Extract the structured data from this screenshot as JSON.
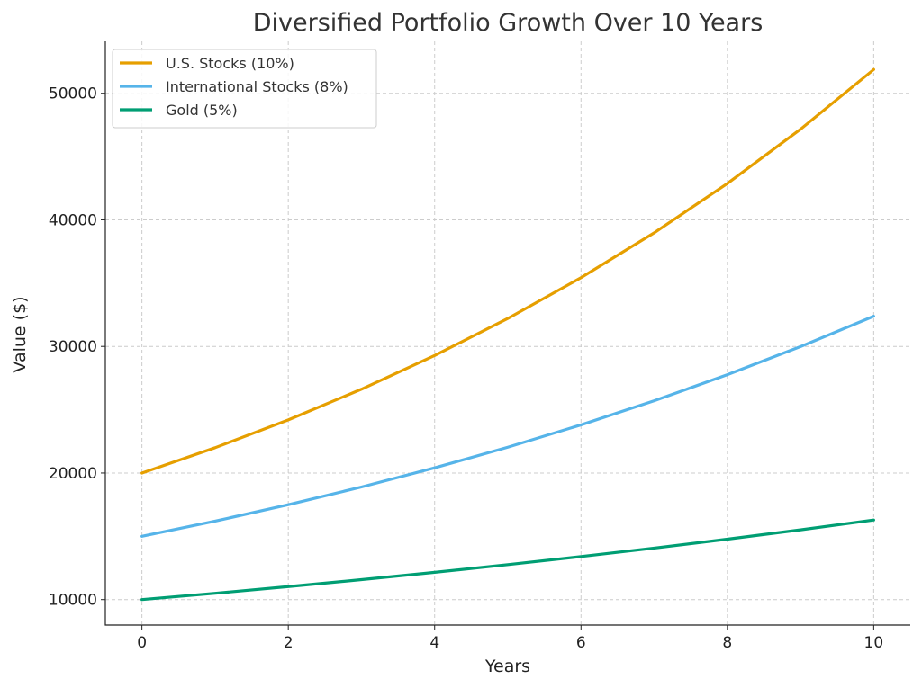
{
  "chart_data": {
    "type": "line",
    "title": "Diversified Portfolio Growth Over 10 Years",
    "xlabel": "Years",
    "ylabel": "Value ($)",
    "x": [
      0,
      1,
      2,
      3,
      4,
      5,
      6,
      7,
      8,
      9,
      10
    ],
    "xlim": [
      -0.5,
      10.5
    ],
    "ylim": [
      7990,
      54100
    ],
    "xticks": [
      0,
      2,
      4,
      6,
      8,
      10
    ],
    "yticks": [
      10000,
      20000,
      30000,
      40000,
      50000
    ],
    "grid": true,
    "legend_position": "top-left",
    "series": [
      {
        "name": "U.S. Stocks (10%)",
        "color": "#E69F00",
        "values": [
          20000,
          22000,
          24200,
          26620,
          29282,
          32210,
          35431,
          38974,
          42872,
          47159,
          51875
        ]
      },
      {
        "name": "International Stocks (8%)",
        "color": "#56B4E9",
        "values": [
          15000,
          16200,
          17496,
          18896,
          20407,
          22040,
          23803,
          25707,
          27764,
          29985,
          32384
        ]
      },
      {
        "name": "Gold (5%)",
        "color": "#009E73",
        "values": [
          10000,
          10500,
          11025,
          11576,
          12155,
          12763,
          13401,
          14071,
          14775,
          15513,
          16289
        ]
      }
    ]
  }
}
